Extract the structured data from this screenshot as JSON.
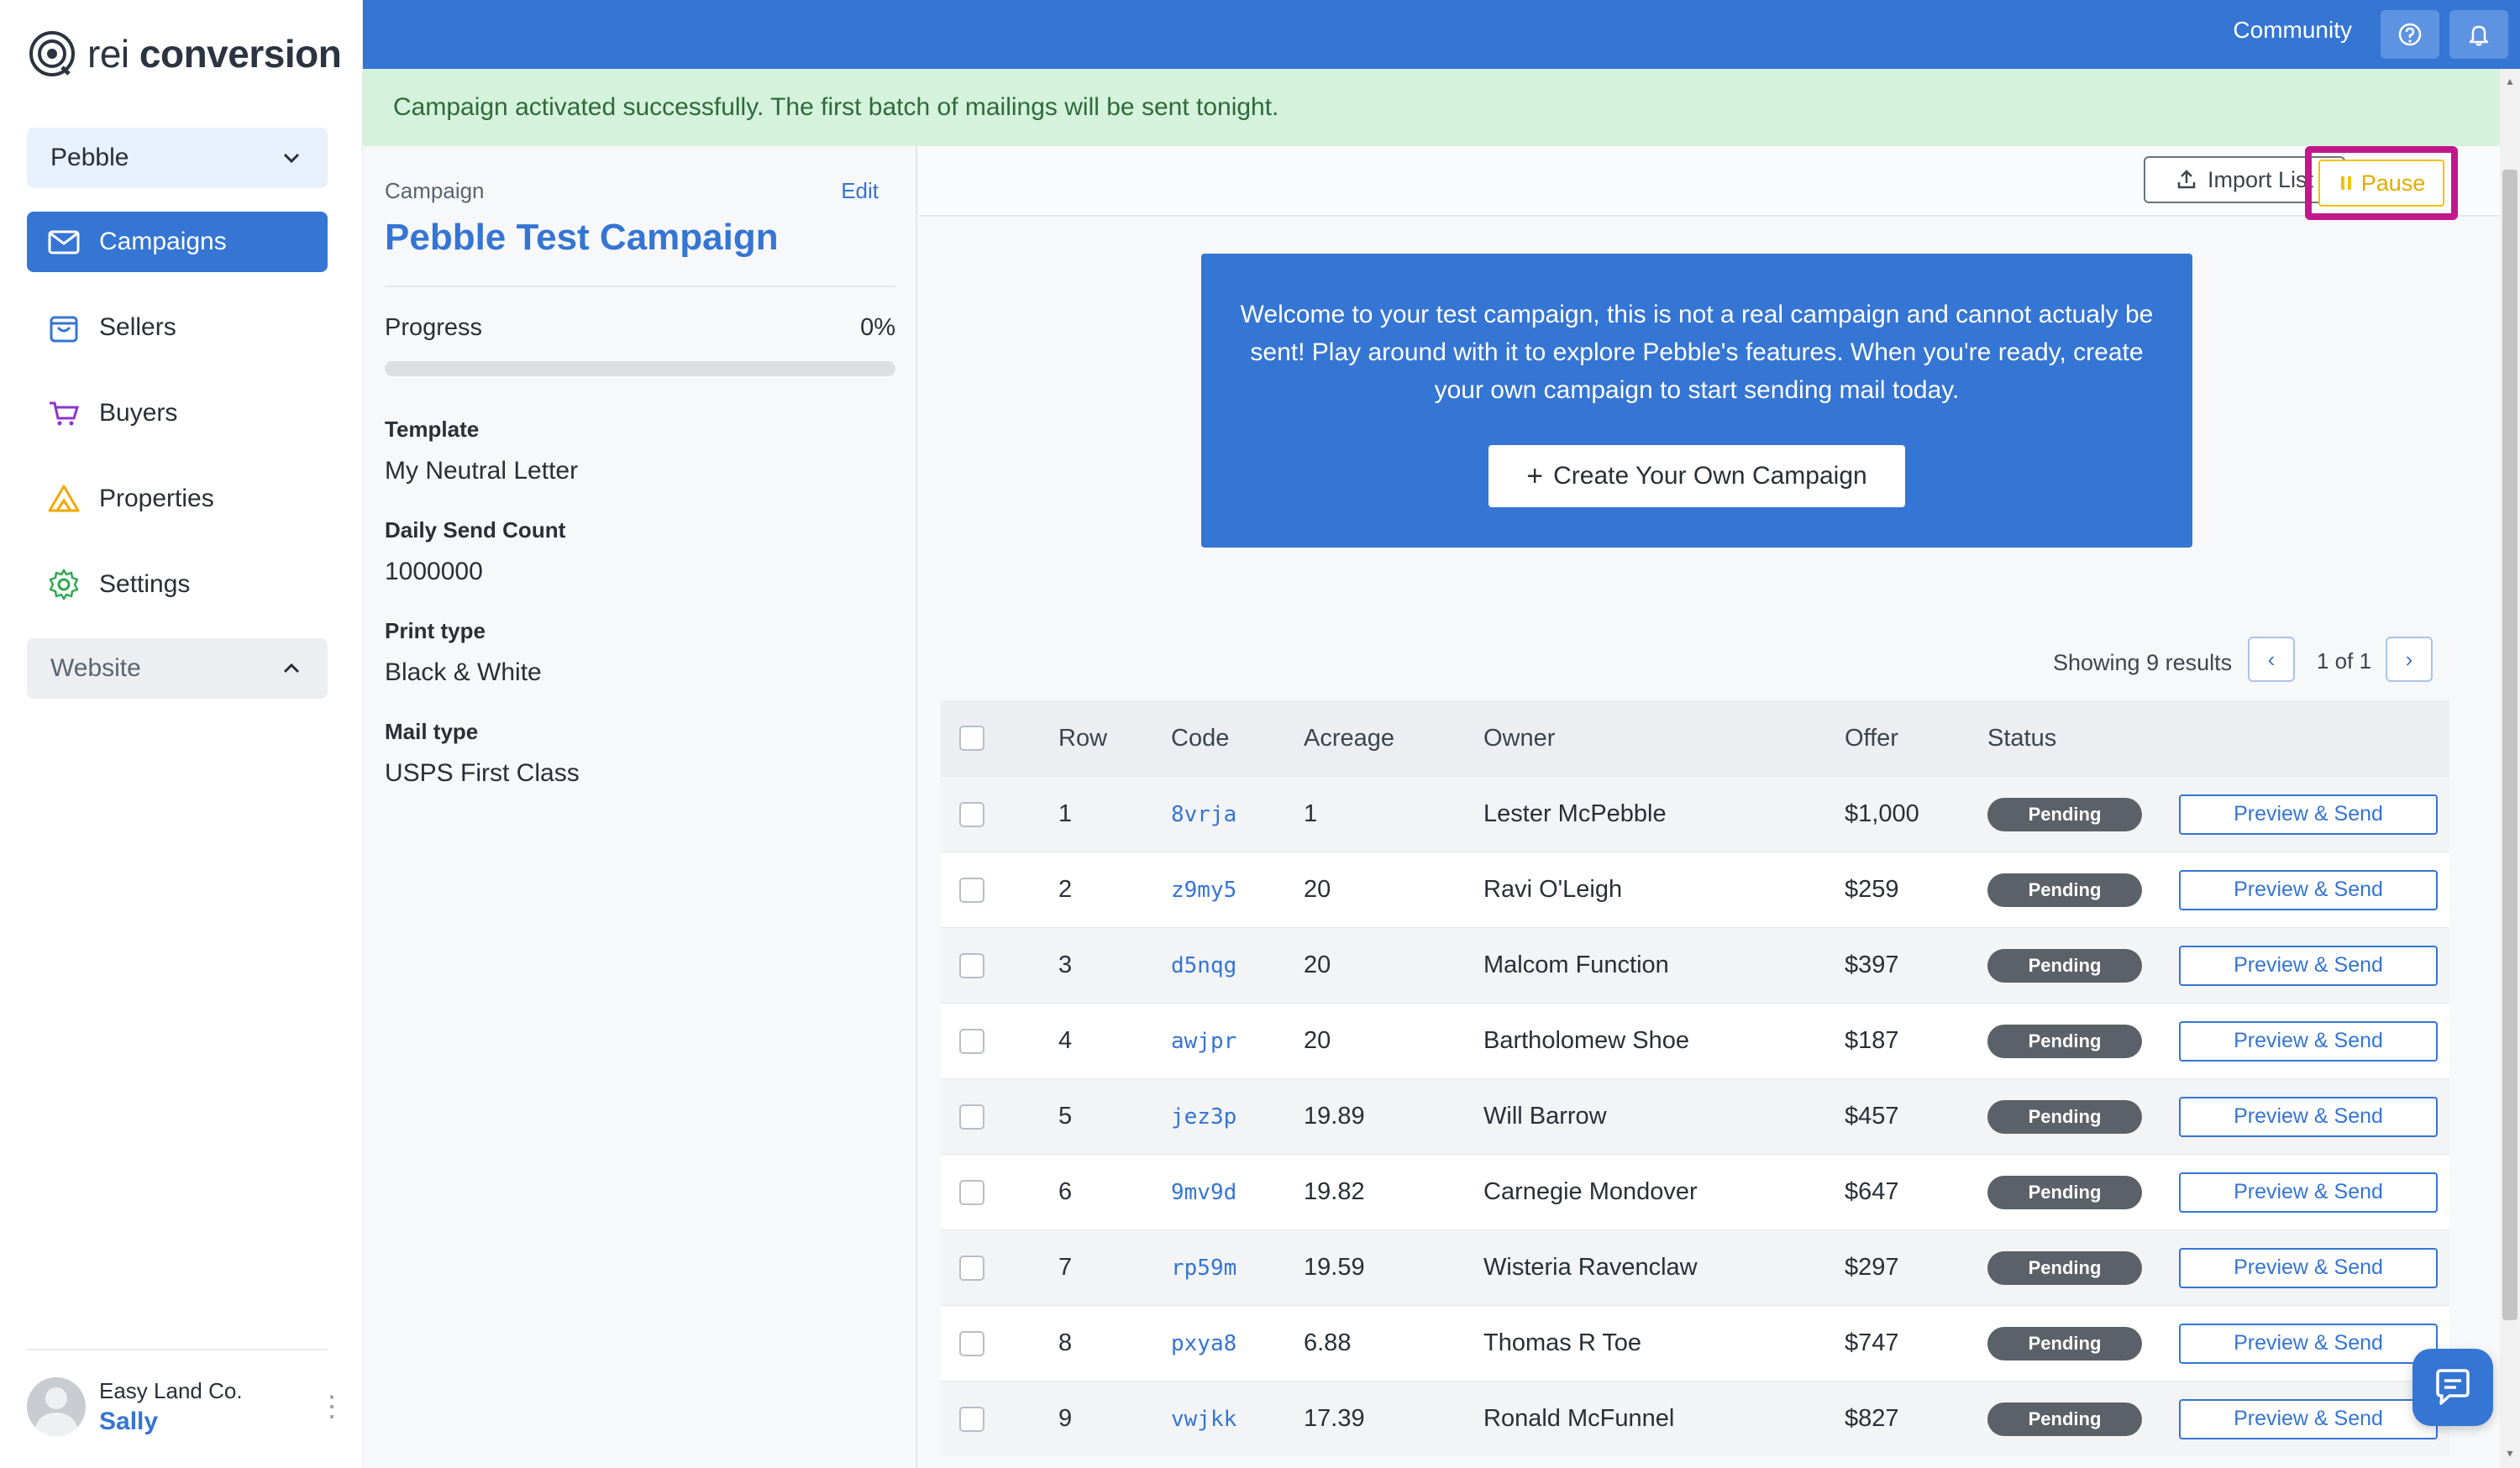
{
  "app": {
    "logo_light": "rei ",
    "logo_bold": "conversion"
  },
  "sidebar": {
    "workspace_select": "Pebble",
    "items": [
      {
        "label": "Campaigns",
        "icon": "envelope-icon",
        "active": true
      },
      {
        "label": "Sellers",
        "icon": "bag-icon",
        "active": false
      },
      {
        "label": "Buyers",
        "icon": "cart-icon",
        "active": false
      },
      {
        "label": "Properties",
        "icon": "warning-triangle-icon",
        "active": false
      },
      {
        "label": "Settings",
        "icon": "gear-icon",
        "active": false
      }
    ],
    "website_select": "Website",
    "user": {
      "company": "Easy Land Co.",
      "name": "Sally"
    }
  },
  "topbar": {
    "community_label": "Community"
  },
  "banner": {
    "message": "Campaign activated successfully. The first batch of mailings will be sent tonight."
  },
  "details": {
    "campaign_label": "Campaign",
    "edit_label": "Edit",
    "title": "Pebble Test Campaign",
    "progress_label": "Progress",
    "progress_value": "0%",
    "progress_fraction": 0,
    "fields": [
      {
        "label": "Template",
        "value": "My Neutral Letter"
      },
      {
        "label": "Daily Send Count",
        "value": "1000000"
      },
      {
        "label": "Print type",
        "value": "Black & White"
      },
      {
        "label": "Mail type",
        "value": "USPS First Class"
      }
    ]
  },
  "toolbar": {
    "import_label": "Import List",
    "pause_label": "Pause"
  },
  "welcome": {
    "text": "Welcome to your test campaign, this is not a real campaign and cannot actualy be sent! Play around with it to explore Pebble's features. When you're ready, create your own campaign to start sending mail today.",
    "create_button": "Create Your Own Campaign"
  },
  "pagination": {
    "results": "Showing 9 results",
    "page": "1 of 1",
    "prev": "‹",
    "next": "›"
  },
  "table": {
    "columns": [
      "Row",
      "Code",
      "Acreage",
      "Owner",
      "Offer",
      "Status"
    ],
    "action_label": "Preview & Send",
    "rows": [
      {
        "row": "1",
        "code": "8vrja",
        "acreage": "1",
        "owner": "Lester McPebble",
        "offer": "$1,000",
        "status": "Pending"
      },
      {
        "row": "2",
        "code": "z9my5",
        "acreage": "20",
        "owner": "Ravi O'Leigh",
        "offer": "$259",
        "status": "Pending"
      },
      {
        "row": "3",
        "code": "d5nqg",
        "acreage": "20",
        "owner": "Malcom Function",
        "offer": "$397",
        "status": "Pending"
      },
      {
        "row": "4",
        "code": "awjpr",
        "acreage": "20",
        "owner": "Bartholomew Shoe",
        "offer": "$187",
        "status": "Pending"
      },
      {
        "row": "5",
        "code": "jez3p",
        "acreage": "19.89",
        "owner": "Will Barrow",
        "offer": "$457",
        "status": "Pending"
      },
      {
        "row": "6",
        "code": "9mv9d",
        "acreage": "19.82",
        "owner": "Carnegie Mondover",
        "offer": "$647",
        "status": "Pending"
      },
      {
        "row": "7",
        "code": "rp59m",
        "acreage": "19.59",
        "owner": "Wisteria Ravenclaw",
        "offer": "$297",
        "status": "Pending"
      },
      {
        "row": "8",
        "code": "pxya8",
        "acreage": "6.88",
        "owner": "Thomas R Toe",
        "offer": "$747",
        "status": "Pending"
      },
      {
        "row": "9",
        "code": "vwjkk",
        "acreage": "17.39",
        "owner": "Ronald McFunnel",
        "offer": "$827",
        "status": "Pending"
      }
    ]
  },
  "colors": {
    "primary": "#3575d3",
    "success_bg": "#d4f2dc",
    "pause": "#f2c200",
    "highlight": "#c2188b",
    "badge": "#5b6168"
  }
}
